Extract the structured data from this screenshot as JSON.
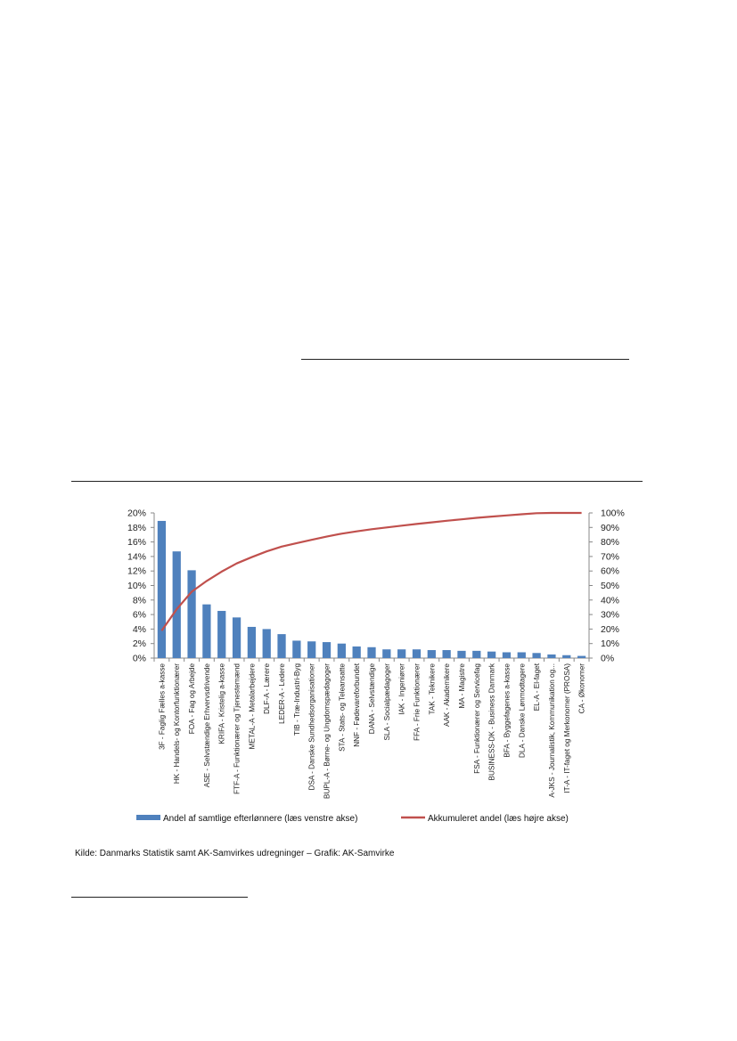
{
  "caption": "Kilde: Danmarks Statistik samt AK-Samvirkes udregninger – Grafik: AK-Samvirke",
  "colors": {
    "bar": "#4f81bd",
    "line": "#c0504d",
    "axis": "#888888"
  },
  "chart_data": {
    "type": "bar",
    "title": "",
    "xlabel": "",
    "ylabel": "",
    "grid": false,
    "legend_position": "bottom",
    "ylim": [
      0,
      20
    ],
    "y2lim": [
      0,
      100
    ],
    "y_ticks": [
      "0%",
      "2%",
      "4%",
      "6%",
      "8%",
      "10%",
      "12%",
      "14%",
      "16%",
      "18%",
      "20%"
    ],
    "y2_ticks": [
      "0%",
      "10%",
      "20%",
      "30%",
      "40%",
      "50%",
      "60%",
      "70%",
      "80%",
      "90%",
      "100%"
    ],
    "categories": [
      "3F - Faglig Fælles a-kasse",
      "HK - Handels- og Kontorfunktionærer",
      "FOA - Fag og Arbejde",
      "ASE - Selvstændige Erhvervsdrivende",
      "KRIFA - Kristelig a-kasse",
      "FTF-A - Funktionærer og Tjenestemænd",
      "METAL-A - Metalarbejdere",
      "DLF-A - Lærere",
      "LEDER-A - Ledere",
      "TIB - Træ-Industri-Byg",
      "DSA - Danske Sundhedsorganisationer",
      "BUPL-A - Børne- og Ungdomspædagoger",
      "STA - Stats- og Teleansatte",
      "NNF - Fødevareforbundet",
      "DANA - Selvstændige",
      "SLA - Socialpædagoger",
      "IAK - Ingeniører",
      "FFA - Frie Funktionærer",
      "TAK - Teknikere",
      "AAK - Akademikere",
      "MA - Magistre",
      "FSA - Funktionærer og Servicefag",
      "BUSINESS-DK - Business Danmark",
      "BFA - Byggefagenes a-kasse",
      "DLA - Danske Lønmodtagere",
      "EL-A - El-faget",
      "A-JKS - Journalistik, Kommunikation og...",
      "IT-A - IT-faget og Merkonomer (PROSA)",
      "CA - Økonomer"
    ],
    "series": [
      {
        "name": "Andel af samtlige efterlønnere (læs venstre akse)",
        "type": "bar",
        "axis": "left",
        "values": [
          18.9,
          14.7,
          12.1,
          7.4,
          6.5,
          5.6,
          4.3,
          4.0,
          3.3,
          2.4,
          2.3,
          2.2,
          2.0,
          1.6,
          1.5,
          1.2,
          1.2,
          1.2,
          1.1,
          1.1,
          1.0,
          1.0,
          0.9,
          0.8,
          0.8,
          0.7,
          0.5,
          0.4,
          0.3
        ]
      },
      {
        "name": "Akkumuleret andel (læs højre akse)",
        "type": "line",
        "axis": "right",
        "values": [
          18.9,
          33.6,
          45.7,
          53.1,
          59.6,
          65.2,
          69.5,
          73.5,
          76.8,
          79.2,
          81.5,
          83.7,
          85.7,
          87.3,
          88.8,
          90.0,
          91.2,
          92.4,
          93.5,
          94.6,
          95.6,
          96.6,
          97.5,
          98.3,
          99.1,
          99.8,
          100.0,
          100.0,
          100.0
        ]
      }
    ]
  }
}
